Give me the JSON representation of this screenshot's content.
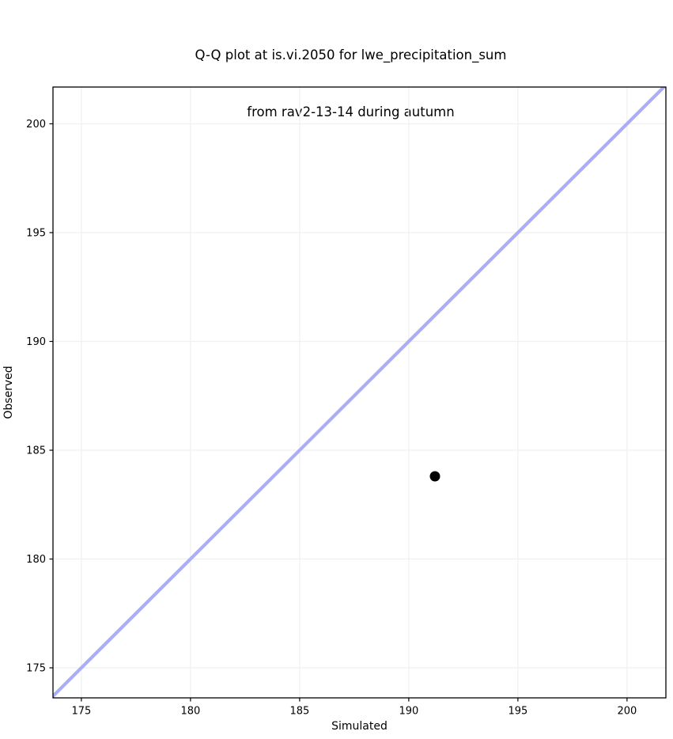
{
  "title": {
    "line1": "Q-Q plot at is.vi.2050 for lwe_precipitation_sum",
    "line2": "from rav2-13-14 during autumn"
  },
  "chart_data": {
    "type": "scatter",
    "title": "Q-Q plot at is.vi.2050 for lwe_precipitation_sum\nfrom rav2-13-14 during autumn",
    "xlabel": "Simulated",
    "ylabel": "Observed",
    "xlim": [
      173.7,
      201.78
    ],
    "ylim": [
      173.62,
      201.69
    ],
    "xticks": [
      175,
      180,
      185,
      190,
      195,
      200
    ],
    "yticks": [
      175,
      180,
      185,
      190,
      195,
      200
    ],
    "grid": true,
    "legend_position": "none",
    "points": [
      {
        "x": 191.2,
        "y": 183.8
      }
    ],
    "identity_line": {
      "x1": 173.0,
      "y1": 173.0,
      "x2": 202.5,
      "y2": 202.5
    },
    "colors": {
      "point": "#000000",
      "identity_line": "#a9aef5",
      "grid": "#f0f0f0",
      "spine": "#000000",
      "text": "#000000",
      "background": "#ffffff"
    }
  }
}
